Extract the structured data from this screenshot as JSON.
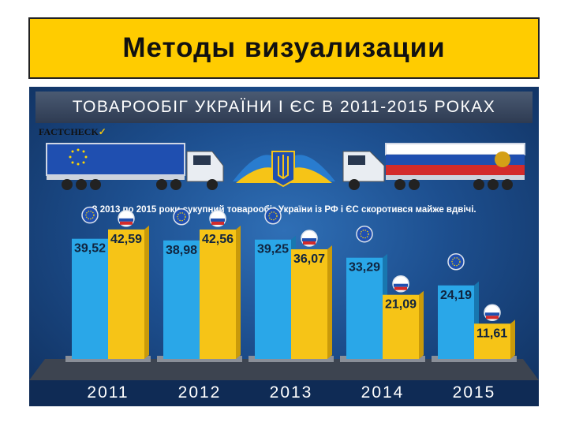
{
  "slide": {
    "title": "Методы визуализации"
  },
  "infographic": {
    "banner_title": "ТОВАРООБІГ УКРАЇНИ І ЄС В 2011-2015 РОКАХ",
    "logo_text": "FACTCHECK",
    "logo_tick": "✓",
    "subtitle": "З 2013 по 2015 роки сукупний товарообіг України із РФ і ЄС скоротився майже вдвічі."
  },
  "colors": {
    "eu_bar": "#2aa7e8",
    "ru_bar": "#f6c417",
    "background": "#1d4f8f",
    "title_bg": "#FFCC00"
  },
  "icons": {
    "eu": "eu-flag-ball-icon",
    "ru": "russia-flag-ball-icon",
    "center": "ukraine-trident-icon"
  },
  "chart_data": {
    "type": "bar",
    "categories": [
      "2011",
      "2012",
      "2013",
      "2014",
      "2015"
    ],
    "series": [
      {
        "values": [
          39.52,
          38.98,
          39.25,
          33.29,
          24.19
        ]
      },
      {
        "values": [
          42.59,
          42.56,
          36.07,
          21.09,
          11.61
        ]
      }
    ],
    "value_labels": [
      [
        "39,52",
        "38,98",
        "39,25",
        "33,29",
        "24,19"
      ],
      [
        "42,59",
        "42,56",
        "36,07",
        "21,09",
        "11,61"
      ]
    ],
    "ylim": [
      0,
      48
    ],
    "grid": false,
    "legend": "none"
  }
}
